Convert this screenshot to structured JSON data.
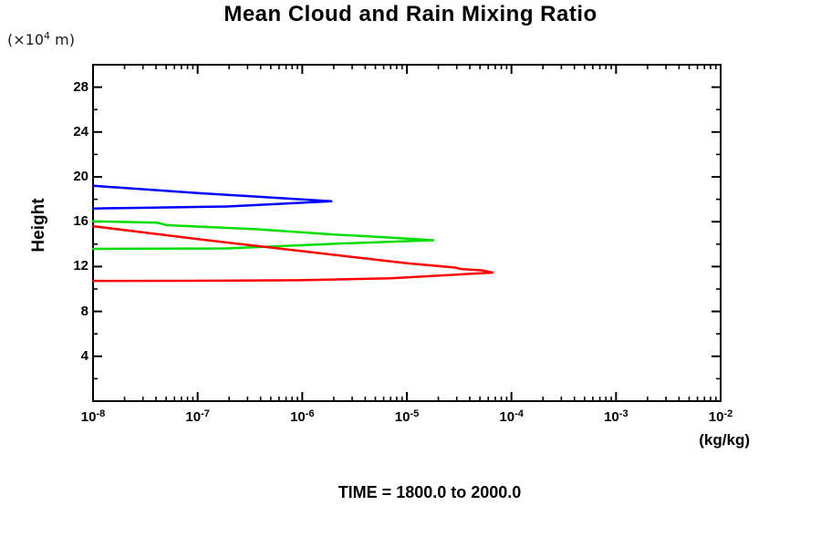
{
  "title": "Mean Cloud and Rain Mixing Ratio",
  "caption": "TIME = 1800.0 to 2000.0",
  "y_axis": {
    "label": "Height",
    "unit_prefix": "(×10",
    "unit_exponent": "4",
    "unit_suffix": " m)"
  },
  "x_axis": {
    "unit": "(kg/kg)",
    "tick_base": "10"
  },
  "chart_data": {
    "type": "line",
    "title": "Mean Cloud and Rain Mixing Ratio",
    "xlabel": "(kg/kg)",
    "ylabel": "Height (x10^4 m)",
    "x_scale": "log",
    "xlim_exponents": [
      -8,
      -2
    ],
    "ylim": [
      0,
      30
    ],
    "x_major_tick_exponents": [
      -8,
      -7,
      -6,
      -5,
      -4,
      -3,
      -2
    ],
    "x_minor_tick_multiples": [
      2,
      3,
      4,
      5,
      6,
      7,
      8,
      9
    ],
    "y_major_ticks": [
      4,
      8,
      12,
      16,
      20,
      24,
      28
    ],
    "y_minor_ticks": [
      2,
      6,
      10,
      14,
      18,
      22,
      26,
      30
    ],
    "grid": false,
    "legend": "none",
    "axis_color": "#000000",
    "series": [
      {
        "name": "blue-profile",
        "color": "#0000ff",
        "points": [
          [
            1e-08,
            19.2
          ],
          [
            1e-07,
            18.56
          ],
          [
            1e-06,
            17.98
          ],
          [
            1.9e-06,
            17.82
          ],
          [
            1.9e-07,
            17.36
          ],
          [
            1e-08,
            17.18
          ]
        ]
      },
      {
        "name": "green-profile",
        "color": "#00dd00",
        "points": [
          [
            1e-08,
            16.04
          ],
          [
            4.1e-08,
            15.91
          ],
          [
            5.1e-08,
            15.69
          ],
          [
            3.6e-07,
            15.33
          ],
          [
            1.85e-06,
            14.88
          ],
          [
            5.9e-06,
            14.63
          ],
          [
            1.79e-05,
            14.35
          ],
          [
            2.6e-06,
            14.07
          ],
          [
            1.9e-07,
            13.62
          ],
          [
            1e-08,
            13.58
          ]
        ]
      },
      {
        "name": "red-profile",
        "color": "#ff0000",
        "points": [
          [
            1e-08,
            15.6
          ],
          [
            1e-07,
            14.45
          ],
          [
            1e-06,
            13.37
          ],
          [
            1e-05,
            12.29
          ],
          [
            2.9e-05,
            11.91
          ],
          [
            3.3e-05,
            11.78
          ],
          [
            5.2e-05,
            11.67
          ],
          [
            6.6e-05,
            11.46
          ],
          [
            7e-06,
            10.95
          ],
          [
            9.3e-07,
            10.78
          ],
          [
            7.2e-08,
            10.73
          ],
          [
            1e-08,
            10.72
          ]
        ]
      }
    ]
  }
}
